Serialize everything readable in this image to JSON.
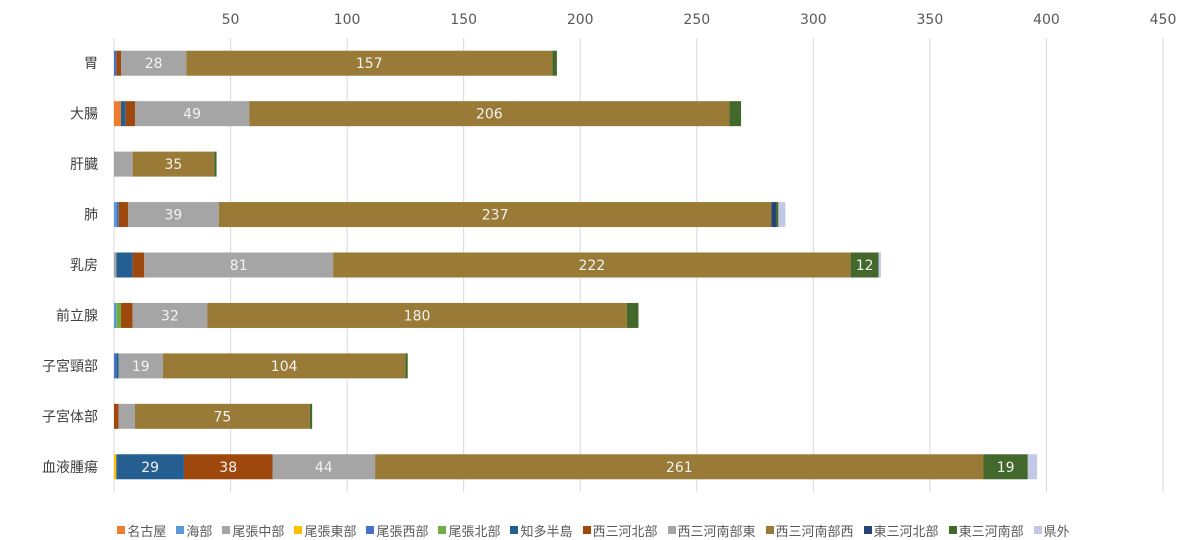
{
  "chart_data": {
    "type": "bar",
    "orientation": "horizontal",
    "stacked": true,
    "xlim": [
      0,
      450
    ],
    "x_ticks": [
      "50",
      "100",
      "150",
      "200",
      "250",
      "300",
      "350",
      "400",
      "450"
    ],
    "x_tick_values": [
      50,
      100,
      150,
      200,
      250,
      300,
      350,
      400,
      450
    ],
    "x_axis_position": "top",
    "grid": true,
    "legend_position": "bottom",
    "categories": [
      "胃",
      "大腸",
      "肝臓",
      "肺",
      "乳房",
      "前立腺",
      "子宮頸部",
      "子宮体部",
      "血液腫瘍"
    ],
    "series": [
      {
        "name": "名古屋",
        "color": "#ED7D31",
        "values": [
          0,
          3,
          0,
          0,
          0,
          0,
          0,
          0,
          0
        ]
      },
      {
        "name": "海部",
        "color": "#5B9BD5",
        "values": [
          0,
          0,
          0,
          1,
          0,
          1,
          0,
          0,
          0
        ]
      },
      {
        "name": "尾張中部",
        "color": "#A5A5A5",
        "values": [
          0,
          0,
          0,
          0,
          1,
          0,
          0,
          0,
          0
        ]
      },
      {
        "name": "尾張東部",
        "color": "#FFC000",
        "values": [
          0,
          0,
          0,
          0,
          0,
          0,
          0,
          0,
          1
        ]
      },
      {
        "name": "尾張西部",
        "color": "#4472C4",
        "values": [
          1,
          0,
          0,
          1,
          0,
          0,
          1,
          0,
          0
        ]
      },
      {
        "name": "尾張北部",
        "color": "#70AD47",
        "values": [
          0,
          0,
          0,
          0,
          0,
          2,
          0,
          0,
          0
        ]
      },
      {
        "name": "知多半島",
        "color": "#255E91",
        "values": [
          0,
          2,
          0,
          0,
          7,
          0,
          1,
          0,
          29
        ]
      },
      {
        "name": "西三河北部",
        "color": "#9E480E",
        "values": [
          2,
          4,
          0,
          4,
          5,
          5,
          0,
          2,
          38
        ]
      },
      {
        "name": "西三河南部東",
        "color": "#A5A5A5",
        "values": [
          28,
          49,
          8,
          39,
          81,
          32,
          19,
          7,
          44
        ]
      },
      {
        "name": "西三河南部西",
        "color": "#997A36",
        "values": [
          157,
          206,
          35,
          237,
          222,
          180,
          104,
          75,
          261
        ]
      },
      {
        "name": "東三河北部",
        "color": "#264478",
        "values": [
          0,
          0,
          0,
          2,
          0,
          0,
          0,
          0,
          0
        ]
      },
      {
        "name": "東三河南部",
        "color": "#43682B",
        "values": [
          2,
          5,
          1,
          1,
          12,
          5,
          1,
          1,
          19
        ]
      },
      {
        "name": "県外",
        "color": "#C3C8E6",
        "values": [
          0,
          0,
          0,
          3,
          1,
          0,
          0,
          0,
          4
        ]
      }
    ],
    "data_labels_min": 10
  }
}
